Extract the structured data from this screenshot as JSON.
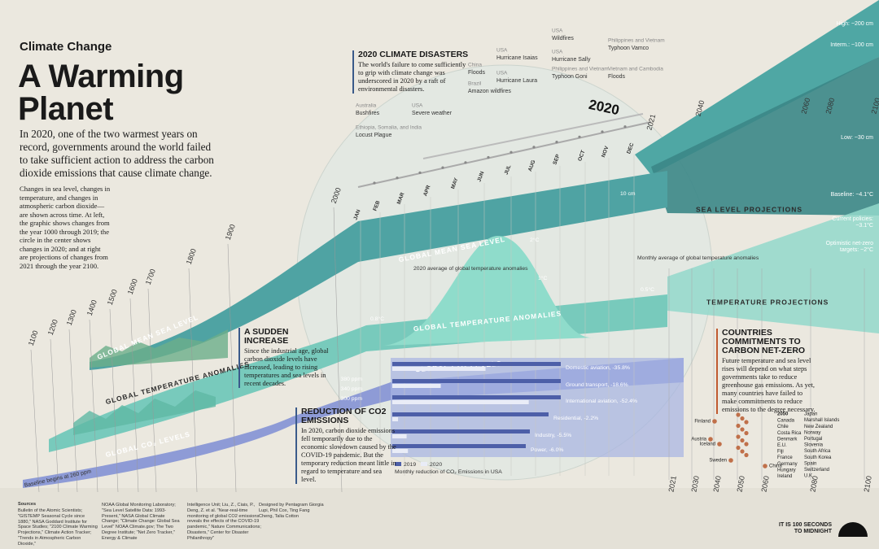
{
  "header": {
    "kicker": "Climate Change",
    "title": "A Warming Planet",
    "intro": "In 2020, one of the two warmest years on record, governments around the world failed to take sufficient action to address the carbon dioxide emissions that cause climate change.",
    "description": "Changes in sea level, changes in temperature, and changes in atmospheric carbon dioxide—are shown across time. At left, the graphic shows changes from the year 1000 through 2019; the circle in the center shows changes in 2020; and at right are projections of changes from 2021 through the year 2100."
  },
  "boxes": [
    {
      "title": "2020 CLIMATE DISASTERS",
      "body": "The world's failure to come sufficiently to grip with climate change was underscored in 2020 by a raft of environmental disasters."
    },
    {
      "title": "A SUDDEN INCREASE",
      "body": "Since the industrial age, global carbon dioxide levels have increased, leading to rising temperatures and sea levels in recent decades."
    },
    {
      "title": "REDUCTION OF CO2 EMISSIONS",
      "body": "In 2020, carbon dioxide emissions fell temporarily due to the economic slowdown caused by the COVID-19 pandemic. But the temporary reduction meant little in regard to temperature and sea level."
    },
    {
      "title": "COUNTRIES COMMITMENTS TO CARBON NET-ZERO",
      "body": "Future temperature and sea level rises will depend on what steps governments take to reduce greenhouse gas emissions. As yet, many countries have failed to make commitments to reduce emissions to the degree necessary."
    }
  ],
  "disasters": [
    {
      "place": "Australia",
      "event": "Bushfires"
    },
    {
      "place": "USA",
      "event": "Severe weather"
    },
    {
      "place": "Ethiopia, Somalia, and India",
      "event": "Locust Plague"
    },
    {
      "place": "China",
      "event": "Floods"
    },
    {
      "place": "Brazil",
      "event": "Amazon wildfires"
    },
    {
      "place": "USA",
      "event": "Hurricane Isaias"
    },
    {
      "place": "USA",
      "event": "Hurricane Laura"
    },
    {
      "place": "USA",
      "event": "Wildfires"
    },
    {
      "place": "USA",
      "event": "Hurricane Sally"
    },
    {
      "place": "Philippines and Vietnam",
      "event": "Typhoon Goni"
    },
    {
      "place": "Philippines and Vietnam",
      "event": "Typhoon Vamco"
    },
    {
      "place": "Vietnam and Cambodia",
      "event": "Floods"
    }
  ],
  "year_label": "2020",
  "history_years": [
    "1100",
    "1200",
    "1300",
    "1400",
    "1500",
    "1600",
    "1700",
    "1800",
    "1900",
    "2000"
  ],
  "months": [
    "JAN",
    "FEB",
    "MAR",
    "APR",
    "MAY",
    "JUN",
    "JUL",
    "AUG",
    "SEP",
    "OCT",
    "NOV",
    "DEC"
  ],
  "projection_years": [
    "2021",
    "2030",
    "2040",
    "2050",
    "2060",
    "2080",
    "2100"
  ],
  "upper_years": [
    "2021",
    "2040",
    "2060",
    "2080",
    "2100"
  ],
  "band_labels": {
    "sea_history": "GLOBAL MEAN SEA LEVEL",
    "sea_2020": "GLOBAL MEAN SEA LEVEL",
    "sea_projection": "SEA LEVEL PROJECTIONS",
    "temp_history": "GLOBAL TEMPERATURE ANOMALIES",
    "temp_2020": "GLOBAL TEMPERATURE ANOMALIES",
    "temp_projection": "TEMPERATURE PROJECTIONS",
    "co2_history": "GLOBAL CO₂ LEVELS",
    "co2_2020": "GLOBAL CO₂ LEVELS"
  },
  "annotations": {
    "ppm": [
      "380 ppm",
      "340 ppm",
      "300 ppm"
    ],
    "baseline": "Baseline begins at 260 ppm",
    "temp_avg": "2020 average of global temperature anomalies",
    "temp_monthly": "Monthly average of global temperature anomalies",
    "temps": [
      "2°C",
      "1°C",
      "0.5°C",
      "0.8°C"
    ],
    "sea_cm": "10 cm"
  },
  "projections": [
    "High: ~200 cm",
    "Interm.: ~100 cm",
    "Low: ~30 cm",
    "Baseline: ~4.1°C",
    "Current policies: ~3.1°C",
    "Optimistic net-zero targets: ~2°C"
  ],
  "co2": {
    "items": [
      {
        "label": "Domestic aviation, -35.8%",
        "value": -35.8
      },
      {
        "label": "Ground transport, -18.6%",
        "value": -18.6
      },
      {
        "label": "International aviation, -52.4%",
        "value": -52.4
      },
      {
        "label": "Residential, -2.2%",
        "value": -2.2
      },
      {
        "label": "Industry, -5.5%",
        "value": -5.5
      },
      {
        "label": "Power, -6.0%",
        "value": -6.0
      }
    ],
    "legend": [
      "2019",
      "2020"
    ],
    "caption": "Monthly reduction of CO₂ Emissions in USA"
  },
  "countries": {
    "dots": [
      "Finland",
      "Austria",
      "Iceland",
      "Sweden",
      "China"
    ],
    "year": "2050",
    "list_a": [
      "Canada",
      "Chile",
      "Costa Rica",
      "Denmark",
      "E.U.",
      "Fiji",
      "France",
      "Germany",
      "Hungary",
      "Ireland"
    ],
    "list_b": [
      "Japan",
      "Marshall Islands",
      "New Zealand",
      "Norway",
      "Portugal",
      "Slovenia",
      "South Africa",
      "South Korea",
      "Spain",
      "Switzerland",
      "U.K."
    ]
  },
  "footer": {
    "sources_title": "Sources",
    "sources": [
      "Bulletin of the Atomic Scientists; \"GISTEMP Seasonal Cycle since 1880,\" NASA Goddard Institute for Space Studies; \"2100 Climate Warming Projections,\" Climate Action Tracker; \"Trends in Atmospheric Carbon Dioxide,\"",
      "NOAA Global Monitoring Laboratory; \"Sea Level Satellite Data: 1993-Present,\" NASA Global Climate Change; \"Climate Change: Global Sea Level\" NOAA Climate.gov; The Two Degree Institute; \"Net Zero Tracker,\" Energy & Climate",
      "Intelligence Unit; Liu, Z., Ciais, P., Deng, Z. et al. \"Near-real-time monitoring of global CO2 emissions reveals the effects of the COVID-19 pandemic,\" Nature Communications; Disasters,\" Center for Disaster Philanthropy\""
    ],
    "credits": "Designed by Pentagram Giorgia Lupi, Phil Cox, Ting Fang Cheng, Talia Cotton",
    "logo": "IT IS 100 SECONDS TO MIDNIGHT"
  }
}
